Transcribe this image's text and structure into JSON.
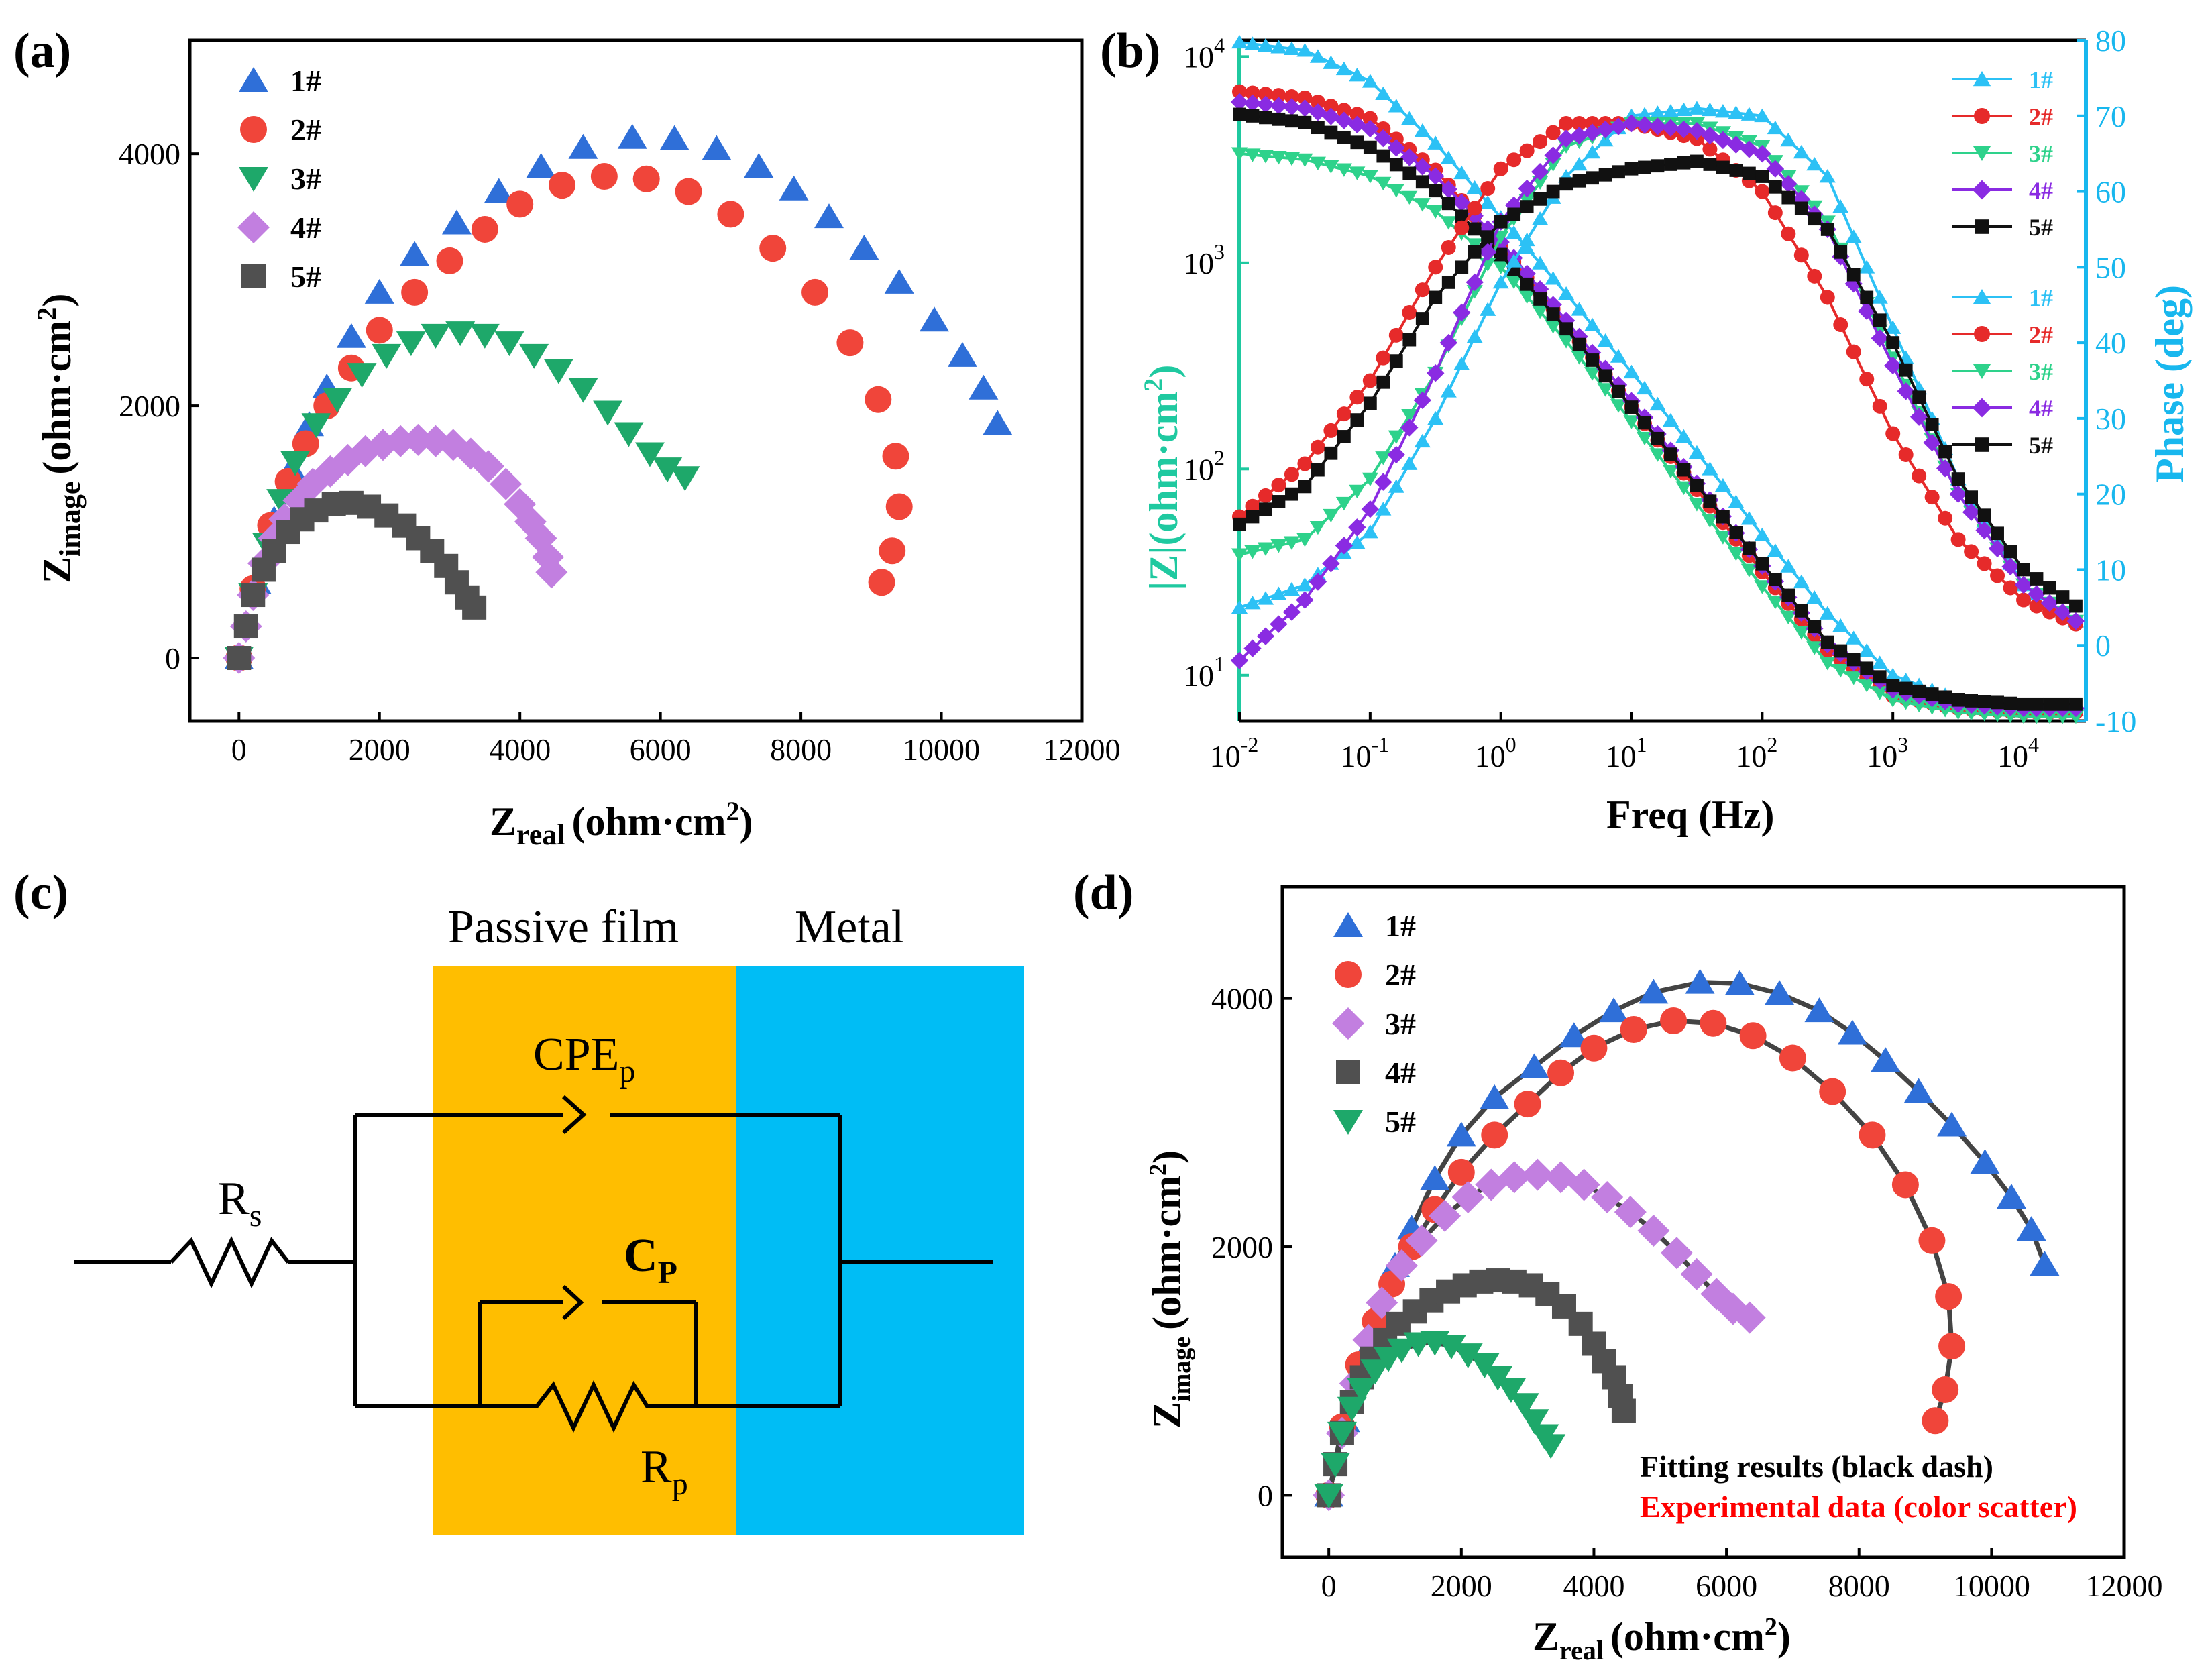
{
  "colors": {
    "s1": "#2F6FD8",
    "s2": "#F0453A",
    "s3": "#1EA86A",
    "s4": "#C27FE0",
    "s5": "#505050",
    "green_axis": "#1FC9A0",
    "cyan_axis": "#18B7EE",
    "b1": "#2CC1F5",
    "b2": "#E62A2A",
    "b3": "#2ED28B",
    "b4": "#8A2BE2",
    "b5": "#111111",
    "film": "#FFBE00",
    "metal": "#00BDF5",
    "fit": "#444444",
    "exp_text": "#FF0000"
  },
  "panels": {
    "a": "(a)",
    "b": "(b)",
    "c": "(c)",
    "d": "(d)"
  },
  "chart_data": [
    {
      "id": "a",
      "type": "scatter",
      "xlabel_main": "Z",
      "xlabel_sub": "real",
      "xlabel_unit": "(ohm·cm",
      "xlabel_sup": "2",
      "xlabel_close": ")",
      "ylabel_main": "Z",
      "ylabel_sub": "image",
      "ylabel_unit": "(ohm·cm",
      "ylabel_sup": "2",
      "ylabel_close": ")",
      "xlim": [
        -700,
        12000
      ],
      "ylim": [
        -500,
        4900
      ],
      "xticks": [
        "0",
        "2000",
        "4000",
        "6000",
        "8000",
        "10000",
        "12000"
      ],
      "yticks": [
        "0",
        "2000",
        "4000"
      ],
      "legend": [
        "1#",
        "2#",
        "3#",
        "4#",
        "5#"
      ],
      "series": [
        {
          "name": "1#",
          "marker": "triangle",
          "color": "s1",
          "x": [
            0,
            250,
            500,
            750,
            1000,
            1250,
            1600,
            2000,
            2500,
            3100,
            3700,
            4300,
            4900,
            5600,
            6200,
            6800,
            7400,
            7900,
            8400,
            8900,
            9400,
            9900,
            10300,
            10600,
            10800
          ],
          "y": [
            0,
            600,
            1100,
            1500,
            1850,
            2150,
            2550,
            2900,
            3200,
            3450,
            3700,
            3900,
            4050,
            4130,
            4120,
            4040,
            3900,
            3720,
            3500,
            3250,
            2980,
            2680,
            2400,
            2140,
            1860
          ]
        },
        {
          "name": "2#",
          "marker": "circle",
          "color": "s2",
          "x": [
            0,
            200,
            450,
            700,
            950,
            1250,
            1600,
            2000,
            2500,
            3000,
            3500,
            4000,
            4600,
            5200,
            5800,
            6400,
            7000,
            7600,
            8200,
            8700,
            9100,
            9350,
            9400,
            9300,
            9150
          ],
          "y": [
            0,
            550,
            1050,
            1400,
            1700,
            2000,
            2300,
            2600,
            2900,
            3150,
            3400,
            3600,
            3750,
            3820,
            3800,
            3700,
            3520,
            3250,
            2900,
            2500,
            2050,
            1600,
            1200,
            850,
            600
          ]
        },
        {
          "name": "3#",
          "marker": "triangle-down",
          "color": "s3",
          "x": [
            0,
            200,
            400,
            600,
            800,
            1100,
            1400,
            1750,
            2100,
            2450,
            2800,
            3150,
            3500,
            3850,
            4200,
            4550,
            4900,
            5250,
            5550,
            5850,
            6100,
            6350
          ],
          "y": [
            0,
            500,
            900,
            1250,
            1550,
            1850,
            2050,
            2250,
            2400,
            2500,
            2560,
            2580,
            2560,
            2500,
            2400,
            2280,
            2130,
            1950,
            1780,
            1620,
            1500,
            1430
          ]
        },
        {
          "name": "4#",
          "marker": "diamond",
          "color": "s4",
          "x": [
            0,
            100,
            200,
            350,
            500,
            650,
            850,
            1050,
            1300,
            1550,
            1800,
            2050,
            2300,
            2550,
            2800,
            3050,
            3300,
            3550,
            3800,
            4000,
            4150,
            4300,
            4400,
            4450
          ],
          "y": [
            0,
            250,
            500,
            750,
            950,
            1100,
            1250,
            1380,
            1480,
            1570,
            1640,
            1690,
            1720,
            1730,
            1720,
            1690,
            1620,
            1520,
            1380,
            1220,
            1080,
            950,
            800,
            680
          ]
        },
        {
          "name": "5#",
          "marker": "square",
          "color": "s5",
          "x": [
            0,
            100,
            200,
            350,
            500,
            700,
            900,
            1100,
            1350,
            1600,
            1850,
            2100,
            2350,
            2550,
            2750,
            2950,
            3100,
            3250,
            3350
          ],
          "y": [
            0,
            250,
            500,
            700,
            850,
            1000,
            1100,
            1170,
            1220,
            1230,
            1200,
            1130,
            1050,
            950,
            850,
            730,
            600,
            480,
            400
          ]
        }
      ]
    },
    {
      "id": "b",
      "type": "line",
      "xlabel": "Freq (Hz)",
      "xscale": "log",
      "xlim": [
        0.01,
        30000
      ],
      "y1label_a": "|Z|(ohm·cm",
      "y1label_sup": "2",
      "y1label_b": ")",
      "y1scale": "log",
      "y1lim": [
        6,
        12000
      ],
      "y2label": "Phase (deg)",
      "y2lim": [
        -10,
        80
      ],
      "xticks": [
        [
          "10",
          "-2"
        ],
        [
          "10",
          "-1"
        ],
        [
          "10",
          "0"
        ],
        [
          "10",
          "1"
        ],
        [
          "10",
          "2"
        ],
        [
          "10",
          "3"
        ],
        [
          "10",
          "4"
        ]
      ],
      "y1ticks": [
        [
          "10",
          "1"
        ],
        [
          "10",
          "2"
        ],
        [
          "10",
          "3"
        ],
        [
          "10",
          "4"
        ]
      ],
      "y2ticks": [
        "-10",
        "0",
        "10",
        "20",
        "30",
        "40",
        "50",
        "60",
        "70",
        "80"
      ],
      "legend": [
        "1#",
        "2#",
        "3#",
        "4#",
        "5#",
        "1#",
        "2#",
        "3#",
        "4#",
        "5#"
      ],
      "series_mag": [
        {
          "name": "1#",
          "marker": "triangle",
          "color": "b1",
          "logf": [
            -2,
            -1.5,
            -1,
            -0.5,
            0,
            0.5,
            1,
            1.5,
            2,
            2.5,
            3,
            3.5,
            4,
            4.5
          ],
          "logz": [
            4.07,
            4.03,
            3.88,
            3.58,
            3.22,
            2.85,
            2.47,
            2.08,
            1.68,
            1.3,
            1.0,
            0.88,
            0.84,
            0.83
          ]
        },
        {
          "name": "2#",
          "marker": "circle",
          "color": "b2",
          "logf": [
            -2,
            -1.5,
            -1,
            -0.5,
            0,
            0.5,
            1,
            1.5,
            2,
            2.5,
            3,
            3.5,
            4,
            4.5
          ],
          "logz": [
            3.83,
            3.8,
            3.7,
            3.45,
            3.08,
            2.7,
            2.3,
            1.9,
            1.5,
            1.12,
            0.9,
            0.84,
            0.82,
            0.82
          ]
        },
        {
          "name": "3#",
          "marker": "triangle-down",
          "color": "b3",
          "logf": [
            -2,
            -1.5,
            -1,
            -0.5,
            0,
            0.5,
            1,
            1.5,
            2,
            2.5,
            3,
            3.5,
            4,
            4.5
          ],
          "logz": [
            3.53,
            3.5,
            3.42,
            3.25,
            2.98,
            2.62,
            2.23,
            1.83,
            1.43,
            1.06,
            0.88,
            0.82,
            0.8,
            0.8
          ]
        },
        {
          "name": "4#",
          "marker": "diamond",
          "color": "b4",
          "logf": [
            -2,
            -1.5,
            -1,
            -0.5,
            0,
            0.5,
            1,
            1.5,
            2,
            2.5,
            3,
            3.5,
            4,
            4.5
          ],
          "logz": [
            3.78,
            3.75,
            3.65,
            3.42,
            3.1,
            2.72,
            2.33,
            1.93,
            1.53,
            1.15,
            0.93,
            0.86,
            0.84,
            0.84
          ]
        },
        {
          "name": "5#",
          "marker": "square",
          "color": "b5",
          "logf": [
            -2,
            -1.5,
            -1,
            -0.5,
            0,
            0.5,
            1,
            1.5,
            2,
            2.5,
            3,
            3.5,
            4,
            4.5
          ],
          "logz": [
            3.72,
            3.68,
            3.56,
            3.35,
            3.04,
            2.68,
            2.3,
            1.92,
            1.54,
            1.16,
            0.95,
            0.88,
            0.86,
            0.86
          ]
        }
      ],
      "series_phase": [
        {
          "name": "1#",
          "marker": "triangle",
          "color": "b1",
          "logf": [
            -2,
            -1.5,
            -1,
            -0.5,
            0,
            0.5,
            1,
            1.5,
            2,
            2.5,
            3,
            3.5,
            4,
            4.5
          ],
          "phase": [
            5,
            8,
            15,
            30,
            48,
            62,
            70,
            71,
            70,
            62,
            42,
            22,
            8,
            2
          ]
        },
        {
          "name": "2#",
          "marker": "circle",
          "color": "b2",
          "logf": [
            -2,
            -1.5,
            -1,
            -0.5,
            0,
            0.5,
            1,
            1.5,
            2,
            2.5,
            3,
            3.5,
            4,
            4.5
          ],
          "phase": [
            17,
            24,
            35,
            50,
            63,
            69,
            69,
            67,
            60,
            46,
            28,
            14,
            6,
            2
          ]
        },
        {
          "name": "3#",
          "marker": "triangle-down",
          "color": "b3",
          "logf": [
            -2,
            -1.5,
            -1,
            -0.5,
            0,
            0.5,
            1,
            1.5,
            2,
            2.5,
            3,
            3.5,
            4,
            4.5
          ],
          "phase": [
            12,
            14,
            22,
            36,
            54,
            66,
            69,
            69,
            66,
            56,
            38,
            20,
            8,
            2
          ]
        },
        {
          "name": "4#",
          "marker": "diamond",
          "color": "b4",
          "logf": [
            -2,
            -1.5,
            -1,
            -0.5,
            0,
            0.5,
            1,
            1.5,
            2,
            2.5,
            3,
            3.5,
            4,
            4.5
          ],
          "phase": [
            -2,
            6,
            18,
            36,
            56,
            67,
            69,
            68,
            65,
            55,
            37,
            20,
            8,
            2
          ]
        },
        {
          "name": "5#",
          "marker": "square",
          "color": "b5",
          "logf": [
            -2,
            -1.5,
            -1,
            -0.5,
            0,
            0.5,
            1,
            1.5,
            2,
            2.5,
            3,
            3.5,
            4,
            4.5
          ],
          "phase": [
            16,
            21,
            32,
            46,
            56,
            61,
            63,
            64,
            62,
            55,
            40,
            22,
            10,
            4
          ]
        }
      ]
    },
    {
      "id": "d",
      "type": "scatter",
      "xlabel_main": "Z",
      "xlabel_sub": "real",
      "xlabel_unit": "(ohm·cm",
      "xlabel_sup": "2",
      "xlabel_close": ")",
      "ylabel_main": "Z",
      "ylabel_sub": "image",
      "ylabel_unit": "(ohm·cm",
      "ylabel_sup": "2",
      "ylabel_close": ")",
      "xlim": [
        -700,
        12000
      ],
      "ylim": [
        -500,
        4900
      ],
      "xticks": [
        "0",
        "2000",
        "4000",
        "6000",
        "8000",
        "10000",
        "12000"
      ],
      "yticks": [
        "0",
        "2000",
        "4000"
      ],
      "legend": [
        "1#",
        "2#",
        "3#",
        "4#",
        "5#"
      ],
      "note_fit": "Fitting results (black dash)",
      "note_exp": "Experimental data (color scatter)",
      "series": [
        {
          "name": "1#",
          "marker": "triangle",
          "color": "s1",
          "x": [
            0,
            250,
            500,
            750,
            1000,
            1250,
            1600,
            2000,
            2500,
            3100,
            3700,
            4300,
            4900,
            5600,
            6200,
            6800,
            7400,
            7900,
            8400,
            8900,
            9400,
            9900,
            10300,
            10600,
            10800
          ],
          "y": [
            0,
            600,
            1100,
            1500,
            1850,
            2150,
            2550,
            2900,
            3200,
            3450,
            3700,
            3900,
            4050,
            4130,
            4120,
            4040,
            3900,
            3720,
            3500,
            3250,
            2980,
            2680,
            2400,
            2140,
            1860
          ]
        },
        {
          "name": "2#",
          "marker": "circle",
          "color": "s2",
          "x": [
            0,
            200,
            450,
            700,
            950,
            1250,
            1600,
            2000,
            2500,
            3000,
            3500,
            4000,
            4600,
            5200,
            5800,
            6400,
            7000,
            7600,
            8200,
            8700,
            9100,
            9350,
            9400,
            9300,
            9150
          ],
          "y": [
            0,
            550,
            1050,
            1400,
            1700,
            2000,
            2300,
            2600,
            2900,
            3150,
            3400,
            3600,
            3750,
            3820,
            3800,
            3700,
            3520,
            3250,
            2900,
            2500,
            2050,
            1600,
            1200,
            850,
            600
          ]
        },
        {
          "name": "3#",
          "marker": "diamond",
          "color": "s4",
          "x": [
            0,
            200,
            400,
            600,
            800,
            1100,
            1400,
            1750,
            2100,
            2450,
            2800,
            3150,
            3500,
            3850,
            4200,
            4550,
            4900,
            5250,
            5550,
            5850,
            6100,
            6350
          ],
          "y": [
            0,
            500,
            900,
            1250,
            1550,
            1850,
            2050,
            2250,
            2400,
            2500,
            2560,
            2580,
            2560,
            2500,
            2400,
            2280,
            2130,
            1950,
            1780,
            1620,
            1500,
            1430
          ]
        },
        {
          "name": "4#",
          "marker": "square",
          "color": "s5",
          "x": [
            0,
            100,
            200,
            350,
            500,
            650,
            850,
            1050,
            1300,
            1550,
            1800,
            2050,
            2300,
            2550,
            2800,
            3050,
            3300,
            3550,
            3800,
            4000,
            4150,
            4300,
            4400,
            4450
          ],
          "y": [
            0,
            250,
            500,
            750,
            950,
            1100,
            1250,
            1380,
            1480,
            1570,
            1640,
            1690,
            1720,
            1730,
            1720,
            1690,
            1620,
            1520,
            1380,
            1220,
            1080,
            950,
            800,
            680
          ]
        },
        {
          "name": "5#",
          "marker": "triangle-down",
          "color": "s3",
          "x": [
            0,
            100,
            200,
            350,
            500,
            700,
            900,
            1100,
            1350,
            1600,
            1850,
            2100,
            2350,
            2550,
            2750,
            2950,
            3100,
            3250,
            3350
          ],
          "y": [
            0,
            250,
            500,
            700,
            850,
            1000,
            1100,
            1170,
            1220,
            1230,
            1200,
            1130,
            1050,
            950,
            850,
            730,
            600,
            480,
            400
          ]
        }
      ]
    }
  ],
  "circuit": {
    "passive_film": "Passive film",
    "metal": "Metal",
    "cpe": "CPE",
    "cpe_sub": "p",
    "rs": "R",
    "rs_sub": "s",
    "cp": "C",
    "cp_sub": "P",
    "rp": "R",
    "rp_sub": "p"
  }
}
